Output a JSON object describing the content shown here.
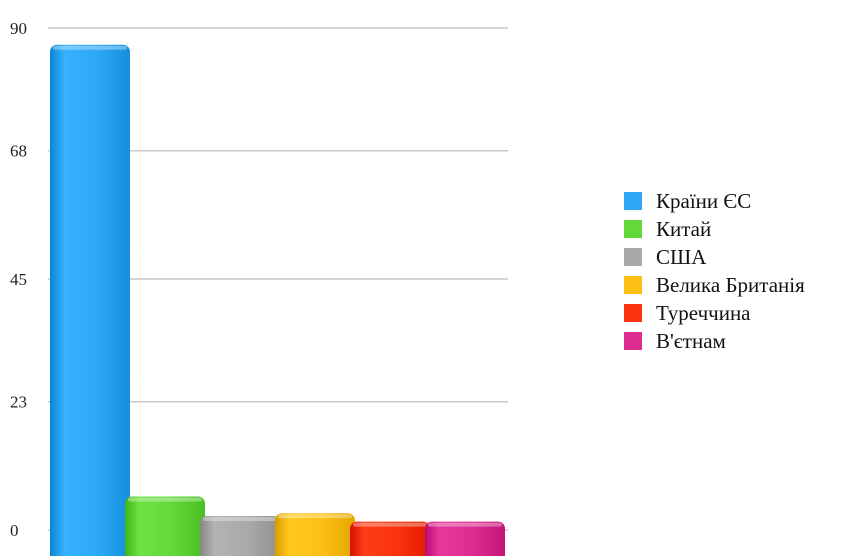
{
  "chart_data": {
    "type": "bar",
    "categories": [
      "Країни ЄС",
      "Китай",
      "США",
      "Велика Британія",
      "Туреччина",
      "В'єтнам"
    ],
    "values": [
      87,
      6,
      2.5,
      3,
      1.5,
      1.5
    ],
    "colors": [
      "#2ca8f6",
      "#63d83a",
      "#a9a9a9",
      "#fbbf14",
      "#f9330c",
      "#dc2d92"
    ],
    "yticks": [
      "0",
      "23",
      "45",
      "68",
      "90"
    ],
    "ylim": [
      0,
      90
    ],
    "grid": true,
    "legend_position": "right",
    "title": "",
    "xlabel": "",
    "ylabel": ""
  }
}
